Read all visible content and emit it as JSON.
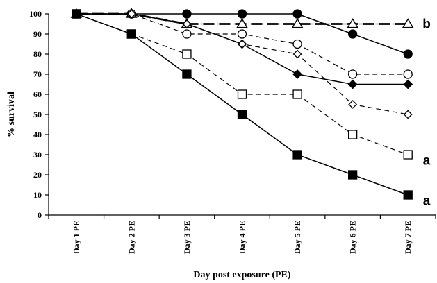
{
  "chart_data": {
    "type": "line",
    "title": "",
    "xlabel": "Day post exposure (PE)",
    "ylabel": "% survival",
    "ylim": [
      0,
      100
    ],
    "yticks": [
      "0",
      "10",
      "20",
      "30",
      "40",
      "50",
      "60",
      "70",
      "80",
      "90",
      "100"
    ],
    "categories": [
      "Day 1 PE",
      "Day 2 PE",
      "Day 3 PE",
      "Day 4 PE",
      "Day 5 PE",
      "Day 6 PE",
      "Day 7 PE"
    ],
    "grid": false,
    "legend": "none",
    "series": [
      {
        "marker": "filled-triangle",
        "line": "long-dash",
        "values": [
          100,
          100,
          95,
          95,
          95,
          95,
          95
        ]
      },
      {
        "marker": "open-triangle",
        "line": "dashed",
        "values": [
          100,
          100,
          95,
          95,
          95,
          95,
          95
        ]
      },
      {
        "marker": "filled-circle",
        "line": "solid",
        "values": [
          100,
          100,
          100,
          100,
          100,
          90,
          80
        ]
      },
      {
        "marker": "open-circle",
        "line": "dashed",
        "values": [
          100,
          100,
          90,
          90,
          85,
          70,
          70
        ]
      },
      {
        "marker": "filled-diamond",
        "line": "solid",
        "values": [
          100,
          100,
          95,
          85,
          70,
          65,
          65
        ]
      },
      {
        "marker": "open-diamond",
        "line": "dashed",
        "values": [
          100,
          100,
          95,
          85,
          80,
          55,
          50
        ]
      },
      {
        "marker": "open-square",
        "line": "dashed",
        "values": [
          100,
          90,
          80,
          60,
          60,
          40,
          30
        ]
      },
      {
        "marker": "filled-square",
        "line": "solid",
        "values": [
          100,
          90,
          70,
          50,
          30,
          20,
          10
        ]
      }
    ],
    "annotations": [
      {
        "text": "b",
        "y": 95
      },
      {
        "text": "a",
        "y": 27
      },
      {
        "text": "a",
        "y": 7
      }
    ]
  }
}
